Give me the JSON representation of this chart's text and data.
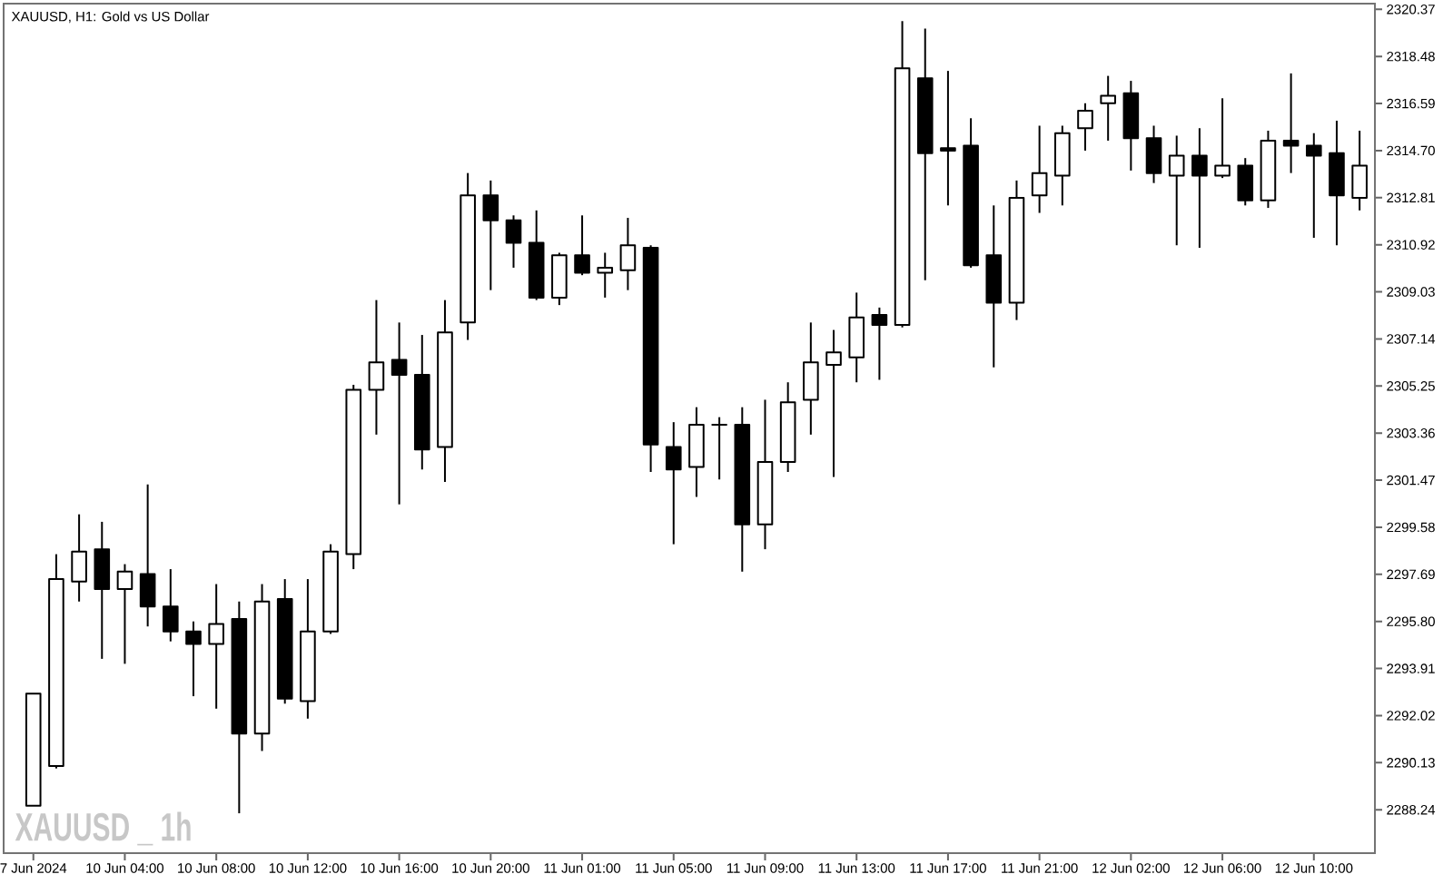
{
  "chart_data": {
    "type": "candlestick",
    "title": "XAUUSD, H1: Gold vs US Dollar",
    "categories": [
      "7 Jun 2024",
      null,
      null,
      null,
      "10 Jun 04:00",
      null,
      null,
      null,
      "10 Jun 08:00",
      null,
      null,
      null,
      "10 Jun 12:00",
      null,
      null,
      null,
      "10 Jun 16:00",
      null,
      null,
      null,
      "10 Jun 20:00",
      null,
      null,
      null,
      "11 Jun 01:00",
      null,
      null,
      null,
      "11 Jun 05:00",
      null,
      null,
      null,
      "11 Jun 09:00",
      null,
      null,
      null,
      "11 Jun 13:00",
      null,
      null,
      null,
      "11 Jun 17:00",
      null,
      null,
      null,
      "11 Jun 21:00",
      null,
      null,
      null,
      "12 Jun 02:00",
      null,
      null,
      null,
      "12 Jun 06:00",
      null,
      null,
      null,
      "12 Jun 10:00",
      null,
      null
    ],
    "ohlc": [
      [
        2288.4,
        2292.9,
        2288.4,
        2292.9
      ],
      [
        2290.0,
        2298.5,
        2289.9,
        2297.5
      ],
      [
        2297.4,
        2300.1,
        2296.6,
        2298.6
      ],
      [
        2298.7,
        2299.8,
        2294.3,
        2297.1
      ],
      [
        2297.1,
        2298.1,
        2294.1,
        2297.8
      ],
      [
        2297.7,
        2301.3,
        2295.6,
        2296.4
      ],
      [
        2296.4,
        2297.9,
        2295.0,
        2295.4
      ],
      [
        2295.4,
        2295.8,
        2292.8,
        2294.9
      ],
      [
        2294.9,
        2297.3,
        2292.3,
        2295.7
      ],
      [
        2295.9,
        2296.6,
        2288.1,
        2291.3
      ],
      [
        2291.3,
        2297.3,
        2290.6,
        2296.6
      ],
      [
        2296.7,
        2297.5,
        2292.5,
        2292.7
      ],
      [
        2292.6,
        2297.5,
        2291.9,
        2295.4
      ],
      [
        2295.4,
        2298.9,
        2295.3,
        2298.6
      ],
      [
        2298.5,
        2305.3,
        2297.9,
        2305.1
      ],
      [
        2305.1,
        2308.7,
        2303.3,
        2306.2
      ],
      [
        2306.3,
        2307.8,
        2300.5,
        2305.7
      ],
      [
        2305.7,
        2307.3,
        2301.9,
        2302.7
      ],
      [
        2302.8,
        2308.7,
        2301.4,
        2307.4
      ],
      [
        2307.8,
        2313.8,
        2307.1,
        2312.9
      ],
      [
        2312.9,
        2313.5,
        2309.1,
        2311.9
      ],
      [
        2311.9,
        2312.1,
        2310.0,
        2311.0
      ],
      [
        2311.0,
        2312.3,
        2308.7,
        2308.8
      ],
      [
        2308.8,
        2310.6,
        2308.5,
        2310.5
      ],
      [
        2310.5,
        2312.1,
        2309.7,
        2309.8
      ],
      [
        2309.8,
        2310.6,
        2308.8,
        2310.0
      ],
      [
        2309.9,
        2312.0,
        2309.1,
        2310.9
      ],
      [
        2310.8,
        2310.9,
        2301.8,
        2302.9
      ],
      [
        2302.8,
        2303.8,
        2298.9,
        2301.9
      ],
      [
        2302.0,
        2304.4,
        2300.8,
        2303.7
      ],
      [
        2303.7,
        2304.0,
        2301.5,
        2303.7
      ],
      [
        2303.7,
        2304.4,
        2297.8,
        2299.7
      ],
      [
        2299.7,
        2304.7,
        2298.7,
        2302.2
      ],
      [
        2302.2,
        2305.4,
        2301.8,
        2304.6
      ],
      [
        2304.7,
        2307.8,
        2303.3,
        2306.2
      ],
      [
        2306.1,
        2307.5,
        2301.6,
        2306.6
      ],
      [
        2306.4,
        2309.0,
        2305.4,
        2308.0
      ],
      [
        2308.1,
        2308.4,
        2305.5,
        2307.7
      ],
      [
        2307.7,
        2319.9,
        2307.6,
        2318.0
      ],
      [
        2317.6,
        2319.6,
        2309.5,
        2314.6
      ],
      [
        2314.8,
        2317.9,
        2312.5,
        2314.7
      ],
      [
        2314.9,
        2316.0,
        2310.0,
        2310.1
      ],
      [
        2310.5,
        2312.5,
        2306.0,
        2308.6
      ],
      [
        2308.6,
        2313.5,
        2307.9,
        2312.8
      ],
      [
        2312.9,
        2315.7,
        2312.2,
        2313.8
      ],
      [
        2313.7,
        2315.7,
        2312.5,
        2315.4
      ],
      [
        2315.6,
        2316.6,
        2314.7,
        2316.3
      ],
      [
        2316.6,
        2317.7,
        2315.1,
        2316.9
      ],
      [
        2317.0,
        2317.5,
        2313.9,
        2315.2
      ],
      [
        2315.2,
        2315.7,
        2313.4,
        2313.8
      ],
      [
        2313.7,
        2315.3,
        2310.9,
        2314.5
      ],
      [
        2314.5,
        2315.6,
        2310.8,
        2313.7
      ],
      [
        2313.7,
        2316.8,
        2313.6,
        2314.1
      ],
      [
        2314.1,
        2314.4,
        2312.5,
        2312.7
      ],
      [
        2312.7,
        2315.5,
        2312.4,
        2315.1
      ],
      [
        2315.1,
        2317.8,
        2313.8,
        2314.9
      ],
      [
        2314.9,
        2315.4,
        2311.2,
        2314.5
      ],
      [
        2314.6,
        2315.9,
        2310.9,
        2312.9
      ],
      [
        2312.8,
        2315.5,
        2312.3,
        2314.1
      ]
    ],
    "ylim": [
      2286.5,
      2320.6
    ],
    "yticks": [
      2288.24,
      2290.13,
      2292.02,
      2293.91,
      {
        "value": 2295.8,
        "label": "2295.80"
      },
      2297.69,
      2299.58,
      2301.47,
      2303.36,
      2305.25,
      2307.14,
      2309.03,
      2310.92,
      2312.81,
      {
        "value": 2314.7,
        "label": "2314.70"
      },
      2316.59,
      2318.48,
      2320.37
    ],
    "annotations": [
      "XAUUSD _ 1h"
    ]
  }
}
